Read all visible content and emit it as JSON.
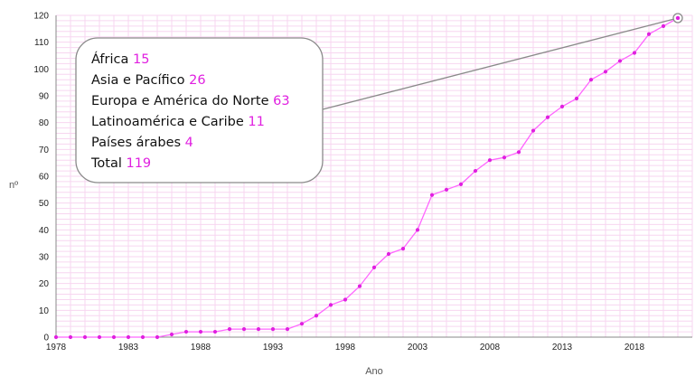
{
  "chart_data": {
    "type": "line",
    "title": "",
    "xlabel": "Ano",
    "ylabel": "nº",
    "xlim": [
      1978,
      2022
    ],
    "ylim": [
      0,
      120
    ],
    "y_ticks": [
      0,
      10,
      20,
      30,
      40,
      50,
      60,
      70,
      80,
      90,
      100,
      110,
      120
    ],
    "x_ticks": [
      1978,
      1983,
      1988,
      1993,
      1998,
      2003,
      2008,
      2013,
      2018
    ],
    "grid": true,
    "colors": {
      "line": "#ff66ff",
      "marker": "#e020e0",
      "grid": "#f7d6f0",
      "highlight": "#e020e0"
    },
    "series": [
      {
        "x": [
          1978,
          1979,
          1980,
          1981,
          1982,
          1983,
          1984,
          1985,
          1986,
          1987,
          1988,
          1989,
          1990,
          1991,
          1992,
          1993,
          1994,
          1995,
          1996,
          1997,
          1998,
          1999,
          2000,
          2001,
          2002,
          2003,
          2004,
          2005,
          2006,
          2007,
          2008,
          2009,
          2010,
          2011,
          2012,
          2013,
          2014,
          2015,
          2016,
          2017,
          2018,
          2019,
          2020,
          2021
        ],
        "values": [
          0,
          0,
          0,
          0,
          0,
          0,
          0,
          0,
          1,
          2,
          2,
          2,
          3,
          3,
          3,
          3,
          3,
          5,
          8,
          12,
          14,
          19,
          26,
          31,
          33,
          40,
          53,
          55,
          57,
          62,
          66,
          67,
          69,
          77,
          82,
          86,
          89,
          96,
          99,
          103,
          106,
          113,
          116,
          119
        ]
      }
    ],
    "callout": {
      "target": {
        "x": 2021,
        "y": 119
      },
      "entries": [
        {
          "label": "África",
          "value": "15"
        },
        {
          "label": "Asia e Pacífico",
          "value": "26"
        },
        {
          "label": "Europa e América do Norte",
          "value": "63"
        },
        {
          "label": "Latinoamérica e Caribe",
          "value": "11"
        },
        {
          "label": "Países árabes",
          "value": "4"
        },
        {
          "label": "Total",
          "value": "119"
        }
      ]
    }
  }
}
